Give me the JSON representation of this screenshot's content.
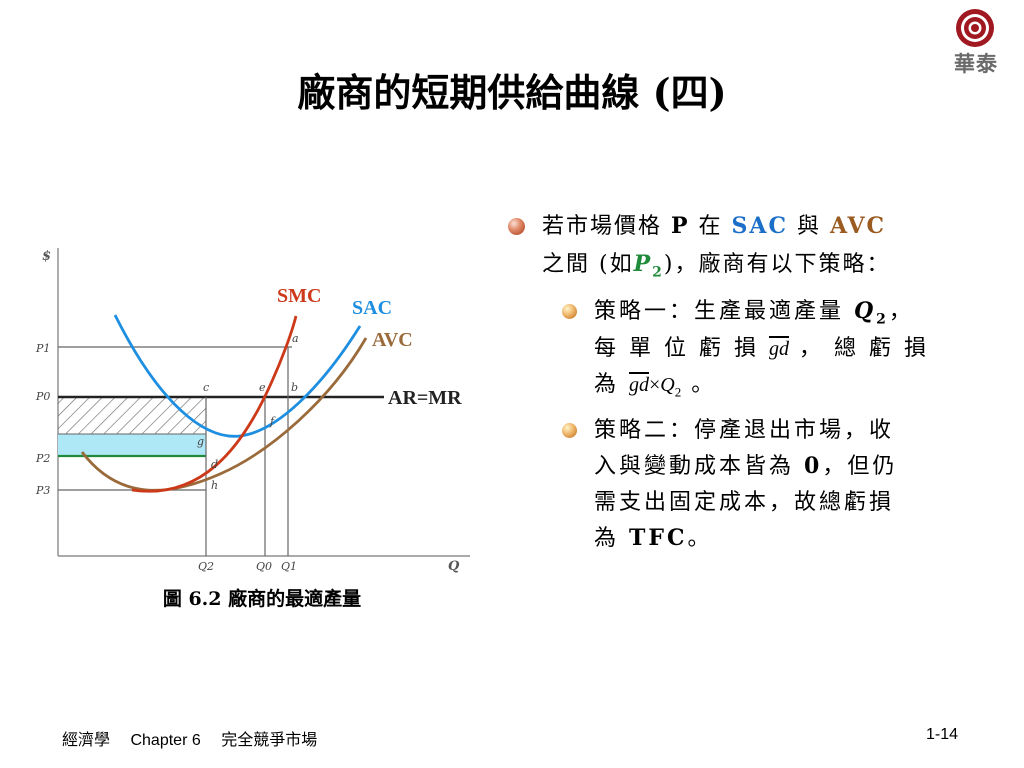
{
  "logo": {
    "text": "華泰"
  },
  "title": "廠商的短期供給曲線 (四)",
  "figure": {
    "caption": "圖 6.2 廠商的最適產量",
    "axis_y_label": "$",
    "axis_x_label": "Q",
    "price_labels": [
      "P1",
      "P0",
      "P2",
      "P3"
    ],
    "quantity_labels": [
      "Q2",
      "Q0",
      "Q1"
    ],
    "point_labels": {
      "a": "a",
      "b": "b",
      "c": "c",
      "d": "d",
      "e": "e",
      "f": "f",
      "g": "g",
      "h": "h"
    },
    "curve_labels": {
      "smc": "SMC",
      "sac": "SAC",
      "avc": "AVC",
      "armr": "AR=MR"
    },
    "colors": {
      "smc": "#cc3a1a",
      "sac": "#1e8fe0",
      "avc": "#9a6a3a",
      "shade": "#aee8f6",
      "p2line": "#1f8a3a"
    }
  },
  "bullets": [
    {
      "l1": {
        "a": "若市場價格 ",
        "p": "P",
        "b": " 在 ",
        "sac": "SAC",
        "c": " 與 ",
        "avc": "AVC"
      },
      "l2": {
        "a": "之間 (如",
        "p": "P",
        "sub": "2",
        "b": ")，廠商有以下策略："
      },
      "children": [
        {
          "l1a": "策略一：生產最適產量 ",
          "q": "Q",
          "qsub": "2",
          "l1b": "，",
          "l2a": "每 單 位 虧 損 ",
          "gd": "gd",
          "l2b": " ， 總 虧 損",
          "l3a": "為 ",
          "gd2": "gd",
          "times": "×",
          "q2": "Q",
          "q2sub": "2",
          "l3b": " 。"
        },
        {
          "l1": "策略二：停產退出市場，收",
          "l2a": "入與變動成本皆為 ",
          "zero": "0",
          "l2b": "，但仍",
          "l3": "需支出固定成本，故總虧損",
          "l4a": "為 ",
          "tfc": "TFC",
          "l4b": "。"
        }
      ]
    }
  ],
  "footer": {
    "course": "經濟學",
    "chapter": "Chapter 6",
    "topic": "完全競爭市場",
    "page": "1-14"
  }
}
